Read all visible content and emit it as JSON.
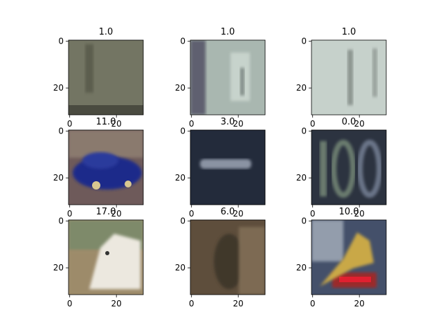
{
  "chart_data": {
    "type": "image-grid",
    "rows": 3,
    "cols": 3,
    "image_size": [
      32,
      32
    ],
    "xticks": [
      0,
      20
    ],
    "yticks": [
      0,
      20
    ],
    "panels": [
      {
        "title": "1.0",
        "bg": "#737563",
        "shade": "#5b5d4e",
        "accent": "#8a8b76"
      },
      {
        "title": "1.0",
        "bg": "#a9b7b0",
        "shade": "#5f6170",
        "accent": "#c7d3cc"
      },
      {
        "title": "1.0",
        "bg": "#c6d1cb",
        "shade": "#8b948f",
        "accent": "#dfe8e2"
      },
      {
        "title": "11.0",
        "bg": "#6e5a5a",
        "shade": "#1c2a8a",
        "accent": "#c8b8a0"
      },
      {
        "title": "3.0",
        "bg": "#232b3b",
        "shade": "#1a2130",
        "accent": "#8a93a3"
      },
      {
        "title": "0.0",
        "bg": "#2c3340",
        "shade": "#1e2530",
        "accent": "#6b7b6e"
      },
      {
        "title": "17.0",
        "bg": "#9d8b6a",
        "shade": "#4f5a3a",
        "accent": "#ece8df"
      },
      {
        "title": "6.0",
        "bg": "#5e4e3c",
        "shade": "#3f392c",
        "accent": "#7d6a52"
      },
      {
        "title": "10.0",
        "bg": "#44506a",
        "shade": "#c8d0d8",
        "accent": "#c9a846"
      }
    ]
  }
}
